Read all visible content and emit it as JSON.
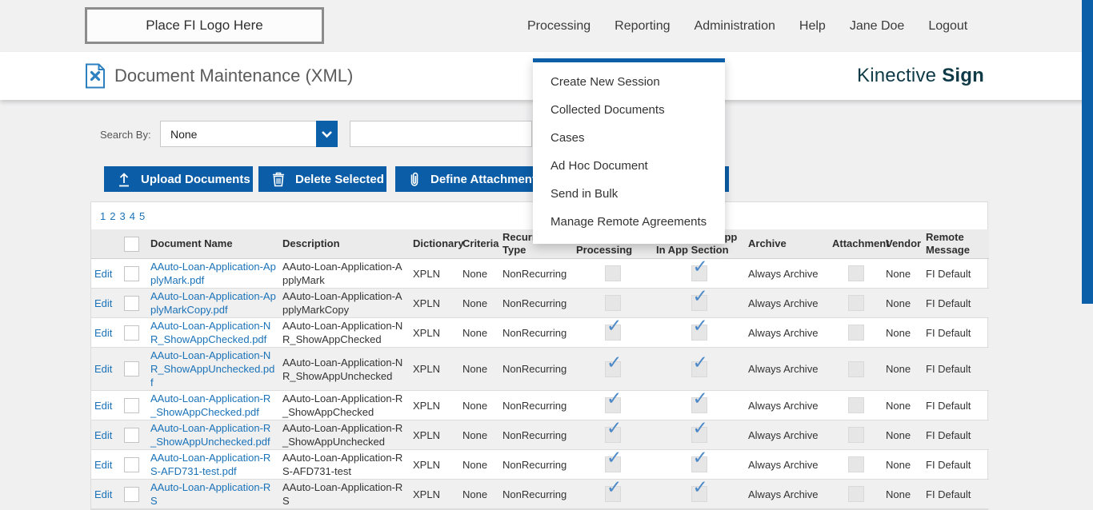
{
  "topbar": {
    "logo_text": "Place FI Logo Here",
    "nav": [
      "Processing",
      "Reporting",
      "Administration",
      "Help",
      "Jane Doe",
      "Logout"
    ]
  },
  "header": {
    "title": "Document Maintenance (XML)",
    "brand_first": "Kinective",
    "brand_second": "Sign"
  },
  "processing_menu": {
    "items": [
      "Create New Session",
      "Collected Documents",
      "Cases",
      "Ad Hoc Document",
      "Send in Bulk",
      "Manage Remote Agreements"
    ]
  },
  "search": {
    "label": "Search By:",
    "selected_option": "None",
    "input_value": ""
  },
  "toolbar": {
    "upload_label": "Upload Documents",
    "delete_label": "Delete Selected",
    "define_label": "Define Attachments"
  },
  "pagination": {
    "pages": [
      "1",
      "2",
      "3",
      "4",
      "5"
    ]
  },
  "table": {
    "columns": [
      "",
      "",
      "Document Name",
      "Description",
      "Dictionary",
      "Criteria",
      "Recurring Type",
      "Display While\nProcessing",
      "Show Other App\nIn App Section",
      "Archive",
      "Attachment",
      "Vendor",
      "Remote\nMessage"
    ],
    "edit_label": "Edit",
    "rows": [
      {
        "document_name": "AAuto-Loan-Application-ApplyMark.pdf",
        "description": "AAuto-Loan-Application-ApplyMark",
        "dictionary": "XPLN",
        "criteria": "None",
        "recurring_type": "NonRecurring",
        "display_while_processing": false,
        "show_other_app": true,
        "archive": "Always Archive",
        "attachment": false,
        "vendor": "None",
        "remote_message": "FI Default"
      },
      {
        "document_name": "AAuto-Loan-Application-ApplyMarkCopy.pdf",
        "description": "AAuto-Loan-Application-ApplyMarkCopy",
        "dictionary": "XPLN",
        "criteria": "None",
        "recurring_type": "NonRecurring",
        "display_while_processing": false,
        "show_other_app": true,
        "archive": "Always Archive",
        "attachment": false,
        "vendor": "None",
        "remote_message": "FI Default"
      },
      {
        "document_name": "AAuto-Loan-Application-NR_ShowAppChecked.pdf",
        "description": "AAuto-Loan-Application-NR_ShowAppChecked",
        "dictionary": "XPLN",
        "criteria": "None",
        "recurring_type": "NonRecurring",
        "display_while_processing": true,
        "show_other_app": true,
        "archive": "Always Archive",
        "attachment": false,
        "vendor": "None",
        "remote_message": "FI Default"
      },
      {
        "document_name": "AAuto-Loan-Application-NR_ShowAppUnchecked.pdf",
        "description": "AAuto-Loan-Application-NR_ShowAppUnchecked",
        "dictionary": "XPLN",
        "criteria": "None",
        "recurring_type": "NonRecurring",
        "display_while_processing": true,
        "show_other_app": true,
        "archive": "Always Archive",
        "attachment": false,
        "vendor": "None",
        "remote_message": "FI Default"
      },
      {
        "document_name": "AAuto-Loan-Application-R_ShowAppChecked.pdf",
        "description": "AAuto-Loan-Application-R_ShowAppChecked",
        "dictionary": "XPLN",
        "criteria": "None",
        "recurring_type": "NonRecurring",
        "display_while_processing": true,
        "show_other_app": true,
        "archive": "Always Archive",
        "attachment": false,
        "vendor": "None",
        "remote_message": "FI Default"
      },
      {
        "document_name": "AAuto-Loan-Application-R_ShowAppUnchecked.pdf",
        "description": "AAuto-Loan-Application-R_ShowAppUnchecked",
        "dictionary": "XPLN",
        "criteria": "None",
        "recurring_type": "NonRecurring",
        "display_while_processing": true,
        "show_other_app": true,
        "archive": "Always Archive",
        "attachment": false,
        "vendor": "None",
        "remote_message": "FI Default"
      },
      {
        "document_name": "AAuto-Loan-Application-RS-AFD731-test.pdf",
        "description": "AAuto-Loan-Application-RS-AFD731-test",
        "dictionary": "XPLN",
        "criteria": "None",
        "recurring_type": "NonRecurring",
        "display_while_processing": true,
        "show_other_app": true,
        "archive": "Always Archive",
        "attachment": false,
        "vendor": "None",
        "remote_message": "FI Default"
      },
      {
        "document_name": "AAuto-Loan-Application-RS",
        "description": "AAuto-Loan-Application-RS",
        "dictionary": "XPLN",
        "criteria": "None",
        "recurring_type": "NonRecurring",
        "display_while_processing": true,
        "show_other_app": true,
        "archive": "Always Archive",
        "attachment": false,
        "vendor": "None",
        "remote_message": "FI Default"
      }
    ]
  },
  "colors": {
    "accent_blue": "#0a5da6",
    "brand_teal": "#0f3a47",
    "link_blue": "#1a72b8",
    "check_blue": "#4c88c6",
    "page_bg": "#f0f0f1"
  }
}
